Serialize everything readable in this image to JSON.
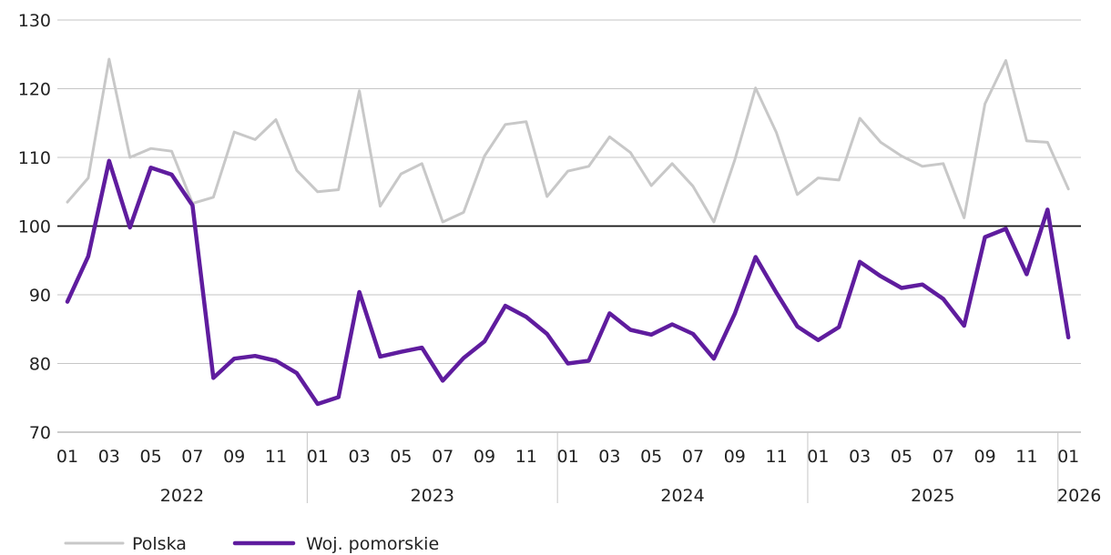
{
  "chart_data": {
    "type": "line",
    "title": "",
    "xlabel": "",
    "ylabel": "",
    "ylim": [
      70,
      130
    ],
    "yticks": [
      70,
      80,
      90,
      100,
      110,
      120,
      130
    ],
    "grid": true,
    "reference_line": 100,
    "legend_position": "bottom-left",
    "x": [
      "2022-01",
      "2022-02",
      "2022-03",
      "2022-04",
      "2022-05",
      "2022-06",
      "2022-07",
      "2022-08",
      "2022-09",
      "2022-10",
      "2022-11",
      "2022-12",
      "2023-01",
      "2023-02",
      "2023-03",
      "2023-04",
      "2023-05",
      "2023-06",
      "2023-07",
      "2023-08",
      "2023-09",
      "2023-10",
      "2023-11",
      "2023-12",
      "2024-01",
      "2024-02",
      "2024-03",
      "2024-04",
      "2024-05",
      "2024-06",
      "2024-07",
      "2024-08",
      "2024-09",
      "2024-10",
      "2024-11",
      "2024-12",
      "2025-01",
      "2025-02",
      "2025-03",
      "2025-04",
      "2025-05",
      "2025-06",
      "2025-07",
      "2025-08",
      "2025-09",
      "2025-10",
      "2025-11",
      "2025-12",
      "2026-01"
    ],
    "x_tick_labels": [
      {
        "i": 0,
        "label": "01"
      },
      {
        "i": 2,
        "label": "03"
      },
      {
        "i": 4,
        "label": "05"
      },
      {
        "i": 6,
        "label": "07"
      },
      {
        "i": 8,
        "label": "09"
      },
      {
        "i": 10,
        "label": "11"
      },
      {
        "i": 12,
        "label": "01"
      },
      {
        "i": 14,
        "label": "03"
      },
      {
        "i": 16,
        "label": "05"
      },
      {
        "i": 18,
        "label": "07"
      },
      {
        "i": 20,
        "label": "09"
      },
      {
        "i": 22,
        "label": "11"
      },
      {
        "i": 24,
        "label": "01"
      },
      {
        "i": 26,
        "label": "03"
      },
      {
        "i": 28,
        "label": "05"
      },
      {
        "i": 30,
        "label": "07"
      },
      {
        "i": 32,
        "label": "09"
      },
      {
        "i": 34,
        "label": "11"
      },
      {
        "i": 36,
        "label": "01"
      },
      {
        "i": 38,
        "label": "03"
      },
      {
        "i": 40,
        "label": "05"
      },
      {
        "i": 42,
        "label": "07"
      },
      {
        "i": 44,
        "label": "09"
      },
      {
        "i": 46,
        "label": "11"
      },
      {
        "i": 48,
        "label": "01"
      }
    ],
    "year_groups": [
      {
        "label": "2022",
        "start": 0,
        "end": 11
      },
      {
        "label": "2023",
        "start": 12,
        "end": 23
      },
      {
        "label": "2024",
        "start": 24,
        "end": 35
      },
      {
        "label": "2025",
        "start": 36,
        "end": 47
      },
      {
        "label": "2026",
        "start": 48,
        "end": 48
      }
    ],
    "series": [
      {
        "name": "Polska",
        "color": "#c8c8c8",
        "values": [
          103.5,
          107.0,
          124.3,
          110.0,
          111.3,
          110.9,
          103.3,
          104.2,
          113.7,
          112.6,
          115.5,
          108.1,
          105.0,
          105.3,
          119.7,
          102.9,
          107.6,
          109.1,
          100.6,
          102.0,
          110.2,
          114.8,
          115.2,
          104.3,
          108.0,
          108.7,
          113.0,
          110.7,
          105.9,
          109.1,
          105.8,
          100.6,
          109.6,
          120.1,
          113.6,
          104.6,
          107.0,
          106.7,
          115.7,
          112.2,
          110.2,
          108.7,
          109.1,
          101.2,
          117.8,
          124.1,
          112.4,
          112.2,
          105.4
        ]
      },
      {
        "name": "Woj. pomorskie",
        "color": "#5f1c9e",
        "values": [
          89.0,
          95.6,
          109.5,
          99.8,
          108.5,
          107.5,
          103.0,
          77.9,
          80.7,
          81.1,
          80.4,
          78.6,
          74.1,
          75.1,
          90.4,
          81.0,
          81.7,
          82.3,
          77.5,
          80.8,
          83.2,
          88.4,
          86.8,
          84.3,
          80.0,
          80.4,
          87.3,
          84.9,
          84.2,
          85.7,
          84.3,
          80.7,
          87.2,
          95.5,
          90.3,
          85.4,
          83.4,
          85.3,
          94.8,
          92.7,
          91.0,
          91.5,
          89.4,
          85.5,
          98.4,
          99.6,
          93.0,
          102.4,
          83.8
        ]
      }
    ]
  }
}
